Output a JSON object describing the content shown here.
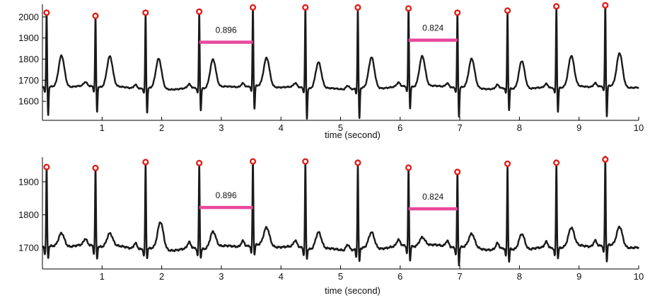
{
  "colors": {
    "signal": "#1a1a1a",
    "r_peak_marker": "#e0201b",
    "interval_bar": "#e8489c",
    "axis": "#000000"
  },
  "chart_data": [
    {
      "type": "line",
      "xlabel": "time (second)",
      "ylabel": "",
      "xlim": [
        0,
        10
      ],
      "ylim": [
        1510,
        2060
      ],
      "x_ticks": [
        1,
        2,
        3,
        4,
        5,
        6,
        7,
        8,
        9,
        10
      ],
      "y_ticks": [
        1600,
        1700,
        1800,
        1900,
        2000
      ],
      "x_tick_labels": [
        "1",
        "2",
        "3",
        "4",
        "5",
        "6",
        "7",
        "8",
        "9",
        "10"
      ],
      "y_tick_labels": [
        "1600",
        "1700",
        "1800",
        "1900",
        "2000"
      ],
      "baseline": 1665,
      "r_peaks": {
        "x": [
          0.07,
          0.89,
          1.73,
          2.63,
          3.53,
          4.41,
          5.29,
          6.14,
          6.96,
          7.8,
          8.62,
          9.44
        ],
        "y": [
          2020,
          2005,
          2020,
          2025,
          2045,
          2045,
          2045,
          2040,
          2020,
          2030,
          2050,
          2055
        ]
      },
      "s_troughs": [
        1530,
        1545,
        1550,
        1560,
        1555,
        1520,
        1520,
        1560,
        1525,
        1560,
        1550,
        1520
      ],
      "t_waves": {
        "x": [
          0.32,
          1.13,
          1.95,
          2.86,
          3.76,
          4.63,
          5.52,
          6.37,
          7.2,
          8.04,
          8.87,
          9.68
        ],
        "y": [
          1815,
          1810,
          1805,
          1800,
          1800,
          1790,
          1810,
          1810,
          1800,
          1800,
          1810,
          1825
        ]
      },
      "rr_intervals": [
        {
          "label": "0.896",
          "x_start": 2.63,
          "x_end": 3.53,
          "y": 1880
        },
        {
          "label": "0.824",
          "x_start": 6.14,
          "x_end": 6.96,
          "y": 1890
        }
      ]
    },
    {
      "type": "line",
      "xlabel": "time (second)",
      "ylabel": "",
      "xlim": [
        0,
        10
      ],
      "ylim": [
        1635,
        1975
      ],
      "x_ticks": [
        1,
        2,
        3,
        4,
        5,
        6,
        7,
        8,
        9,
        10
      ],
      "y_ticks": [
        1700,
        1800,
        1900
      ],
      "x_tick_labels": [
        "1",
        "2",
        "3",
        "4",
        "5",
        "6",
        "7",
        "8",
        "9",
        "10"
      ],
      "y_tick_labels": [
        "1700",
        "1800",
        "1900"
      ],
      "baseline": 1700,
      "r_peaks": {
        "x": [
          0.07,
          0.89,
          1.73,
          2.63,
          3.53,
          4.41,
          5.29,
          6.14,
          6.96,
          7.8,
          8.62,
          9.44
        ],
        "y": [
          1945,
          1942,
          1960,
          1957,
          1962,
          1962,
          1958,
          1943,
          1930,
          1955,
          1958,
          1968
        ]
      },
      "s_troughs": [
        1665,
        1662,
        1672,
        1673,
        1670,
        1670,
        1660,
        1655,
        1645,
        1660,
        1668,
        1650
      ],
      "t_waves": {
        "x": [
          0.32,
          1.13,
          1.98,
          2.86,
          3.76,
          4.63,
          5.52,
          6.37,
          7.2,
          8.04,
          8.87,
          9.68
        ],
        "y": [
          1742,
          1740,
          1782,
          1750,
          1755,
          1752,
          1748,
          1727,
          1740,
          1750,
          1755,
          1760
        ]
      },
      "rr_intervals": [
        {
          "label": "0.896",
          "x_start": 2.63,
          "x_end": 3.53,
          "y": 1822
        },
        {
          "label": "0.824",
          "x_start": 6.14,
          "x_end": 6.96,
          "y": 1818
        }
      ]
    }
  ]
}
